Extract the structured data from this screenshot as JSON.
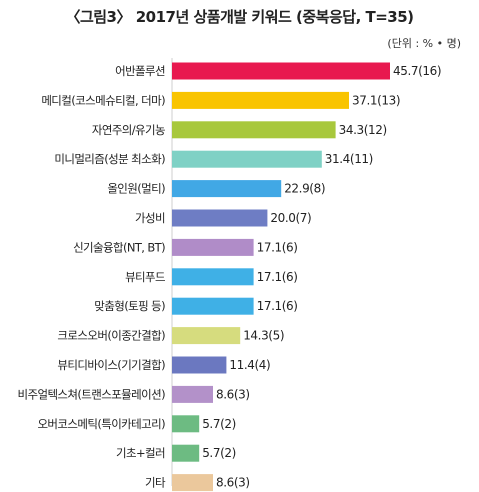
{
  "chart_data": {
    "type": "bar",
    "orientation": "horizontal",
    "title": "〈그림3〉 2017년 상품개발 키워드 (중복응답, T=35)",
    "unit": "(단위 : % • 명)",
    "categories": [
      "어반폴루션",
      "메디컬(코스메슈티컬, 더마)",
      "자연주의/유기농",
      "미니멀리즘(성분 최소화)",
      "올인원(멀티)",
      "가성비",
      "신기술융합(NT, BT)",
      "뷰티푸드",
      "맞춤형(토핑 등)",
      "크로스오버(이종간결합)",
      "뷰티디바이스(기기결합)",
      "비주얼텍스쳐(트랜스포뮬레이션)",
      "오버코스메틱(특이카테고리)",
      "기초+컬러",
      "기타"
    ],
    "values": [
      45.7,
      37.1,
      34.3,
      31.4,
      22.9,
      20.0,
      17.1,
      17.1,
      17.1,
      14.3,
      11.4,
      8.6,
      5.7,
      5.7,
      8.6
    ],
    "value_labels": [
      "45.7(16)",
      "37.1(13)",
      "34.3(12)",
      "31.4(11)",
      "22.9(8)",
      "20.0(7)",
      "17.1(6)",
      "17.1(6)",
      "17.1(6)",
      "14.3(5)",
      "11.4(4)",
      "8.6(3)",
      "5.7(2)",
      "5.7(2)",
      "8.6(3)"
    ],
    "colors": [
      "#e8194f",
      "#f9c400",
      "#a8c83c",
      "#7fd1c5",
      "#41a8e5",
      "#6e7dc4",
      "#b08cc8",
      "#3fb0e6",
      "#3fb0e6",
      "#d6dc7e",
      "#6b78c0",
      "#b391c9",
      "#6dbb82",
      "#6dbb82",
      "#ebc89c"
    ],
    "xlim": [
      0,
      50
    ],
    "grid": false,
    "legend": "none"
  }
}
